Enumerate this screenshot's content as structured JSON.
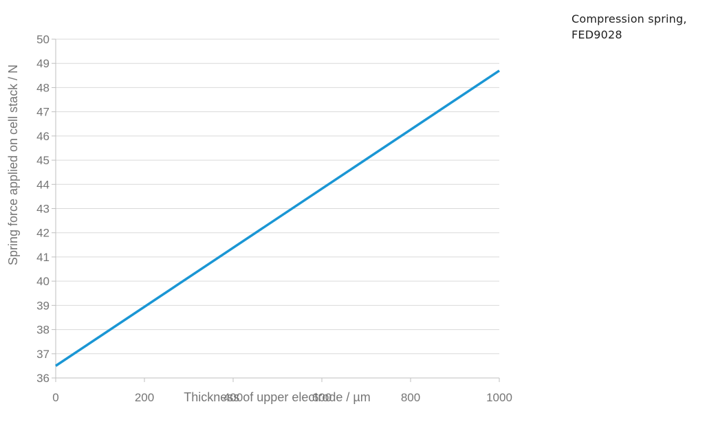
{
  "chart_data": {
    "type": "line",
    "title": "",
    "xlabel": "Thickness of upper electrode / µm",
    "ylabel": "Spring force applied on cell stack / N",
    "xlim": [
      0,
      1000
    ],
    "ylim": [
      36,
      50
    ],
    "x_ticks": [
      0,
      200,
      400,
      600,
      800,
      1000
    ],
    "y_ticks": [
      36,
      37,
      38,
      39,
      40,
      41,
      42,
      43,
      44,
      45,
      46,
      47,
      48,
      49,
      50
    ],
    "grid": "horizontal",
    "legend_position": "top-right",
    "series": [
      {
        "name": "Compression spring, FED9028",
        "color": "#1a96d4",
        "x": [
          0,
          1000
        ],
        "y": [
          36.5,
          48.7
        ]
      }
    ]
  }
}
